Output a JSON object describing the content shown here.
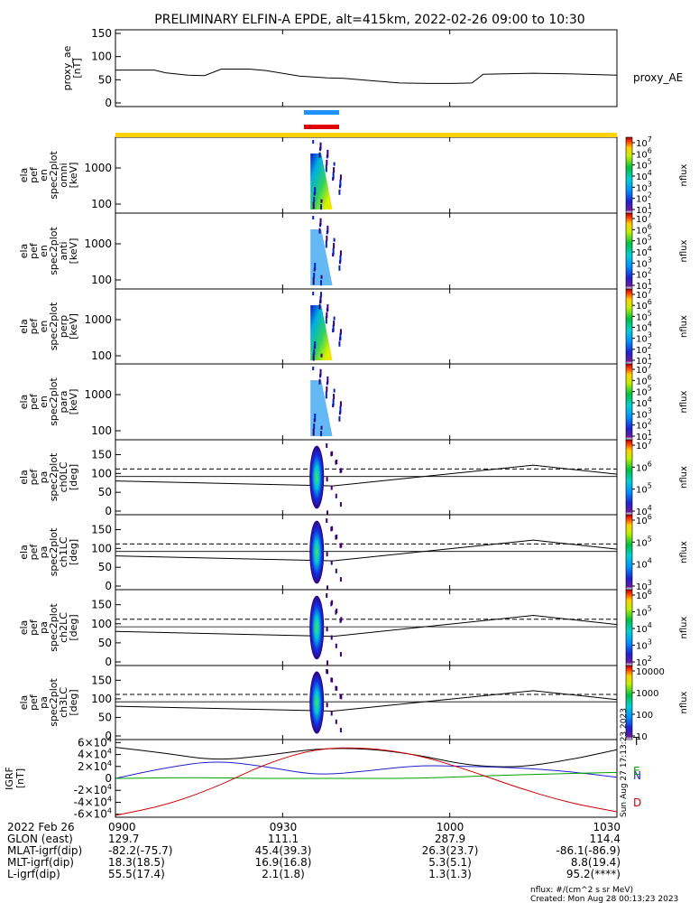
{
  "title": "PRELIMINARY ELFIN-A EPDE, alt=415km, 2022-02-26 09:00 to 10:30",
  "colors": {
    "bar_blue": "#1e90ff",
    "bar_red": "#e00000",
    "bar_yellow": "#ffd200",
    "igrf_black": "#000000",
    "igrf_blue": "#1f1fd0",
    "igrf_green": "#00a000",
    "igrf_red": "#d00000"
  },
  "chart_data": [
    {
      "type": "line",
      "name": "proxy_ae",
      "ylabel_lines": [
        "proxy_ae",
        "[nT]"
      ],
      "legend": "proxy_AE",
      "ylim": [
        0,
        150
      ],
      "yticks": [
        "150",
        "100",
        "50",
        "0"
      ],
      "x": [
        "09:00",
        "09:07",
        "09:09",
        "09:13",
        "09:16",
        "09:19",
        "09:24",
        "09:27",
        "09:33",
        "09:38",
        "09:41",
        "09:46",
        "09:51",
        "09:56",
        "10:00",
        "10:04",
        "10:06",
        "10:15",
        "10:21",
        "10:30"
      ],
      "values": [
        71,
        71,
        65,
        60,
        59,
        73,
        73,
        70,
        58,
        54,
        53,
        48,
        43,
        42,
        42,
        43,
        62,
        64,
        63,
        60
      ]
    },
    {
      "type": "heatmap",
      "name": "spec2plot_omni",
      "ylabel_lines": [
        "ela",
        "pef",
        "en",
        "spec2plot",
        "omni",
        "[keV]"
      ],
      "y_scale": "log",
      "yticks": [
        "1000",
        "100"
      ],
      "colorbar": {
        "label": "nflux",
        "ticks": [
          "10^7",
          "10^6",
          "10^5",
          "10^4",
          "10^3",
          "10^2",
          "10^1"
        ]
      }
    },
    {
      "type": "heatmap",
      "name": "spec2plot_anti",
      "ylabel_lines": [
        "ela",
        "pef",
        "en",
        "spec2plot",
        "anti",
        "[keV]"
      ],
      "y_scale": "log",
      "yticks": [
        "1000",
        "100"
      ],
      "colorbar": {
        "label": "nflux",
        "ticks": [
          "10^7",
          "10^6",
          "10^5",
          "10^4",
          "10^3",
          "10^2",
          "10^1"
        ]
      }
    },
    {
      "type": "heatmap",
      "name": "spec2plot_perp",
      "ylabel_lines": [
        "ela",
        "pef",
        "en",
        "spec2plot",
        "perp",
        "[keV]"
      ],
      "y_scale": "log",
      "yticks": [
        "1000",
        "100"
      ],
      "colorbar": {
        "label": "nflux",
        "ticks": [
          "10^7",
          "10^6",
          "10^5",
          "10^4",
          "10^3",
          "10^2",
          "10^1"
        ]
      }
    },
    {
      "type": "heatmap",
      "name": "spec2plot_para",
      "ylabel_lines": [
        "ela",
        "pef",
        "en",
        "spec2plot",
        "para",
        "[keV]"
      ],
      "y_scale": "log",
      "yticks": [
        "1000",
        "100"
      ],
      "colorbar": {
        "label": "nflux",
        "ticks": [
          "10^7",
          "10^6",
          "10^5",
          "10^4",
          "10^3",
          "10^2",
          "10^1"
        ]
      }
    },
    {
      "type": "heatmap",
      "name": "spec2plot_ch0LC",
      "ylabel_lines": [
        "ela",
        "pef",
        "pa",
        "spec2plot",
        "ch0LC",
        "[deg]"
      ],
      "ylim": [
        0,
        180
      ],
      "yticks": [
        "150",
        "100",
        "50",
        "0"
      ],
      "colorbar": {
        "label": "nflux",
        "ticks": [
          "10^7",
          "10^6",
          "10^5",
          "10^4"
        ]
      }
    },
    {
      "type": "heatmap",
      "name": "spec2plot_ch1LC",
      "ylabel_lines": [
        "ela",
        "pef",
        "pa",
        "spec2plot",
        "ch1LC",
        "[deg]"
      ],
      "ylim": [
        0,
        180
      ],
      "yticks": [
        "150",
        "100",
        "50",
        "0"
      ],
      "colorbar": {
        "label": "nflux",
        "ticks": [
          "10^6",
          "10^5",
          "10^4",
          "10^3"
        ]
      }
    },
    {
      "type": "heatmap",
      "name": "spec2plot_ch2LC",
      "ylabel_lines": [
        "ela",
        "pef",
        "pa",
        "spec2plot",
        "ch2LC",
        "[deg]"
      ],
      "ylim": [
        0,
        180
      ],
      "yticks": [
        "150",
        "100",
        "50",
        "0"
      ],
      "colorbar": {
        "label": "nflux",
        "ticks": [
          "10^6",
          "10^5",
          "10^4",
          "10^3",
          "10^2"
        ]
      }
    },
    {
      "type": "heatmap",
      "name": "spec2plot_ch3LC",
      "ylabel_lines": [
        "ela",
        "pef",
        "pa",
        "spec2plot",
        "ch3LC",
        "[deg]"
      ],
      "ylim": [
        0,
        180
      ],
      "yticks": [
        "150",
        "100",
        "50",
        "0"
      ],
      "colorbar": {
        "label": "nflux",
        "ticks": [
          "10000",
          "1000",
          "100",
          "10"
        ]
      }
    },
    {
      "type": "line",
      "name": "IGRF",
      "ylabel_lines": [
        "IGRF",
        "[nT]"
      ],
      "ylim": [
        -65000,
        65000
      ],
      "yticks": [
        "6×10^4",
        "4×10^4",
        "2×10^4",
        "0",
        "-2×10^4",
        "-4×10^4",
        "-6×10^4"
      ],
      "x": [
        "09:00",
        "09:09",
        "09:18",
        "09:27",
        "09:36",
        "09:45",
        "09:54",
        "10:03",
        "10:12",
        "10:21",
        "10:30"
      ],
      "series": [
        {
          "name": "T",
          "values": [
            52000,
            42000,
            30000,
            38000,
            50000,
            50000,
            40000,
            22000,
            18000,
            30000,
            48000
          ]
        },
        {
          "name": "N",
          "values": [
            0,
            18000,
            30000,
            20000,
            5000,
            12000,
            22000,
            20000,
            18000,
            12000,
            2000
          ]
        },
        {
          "name": "E",
          "values": [
            0,
            1000,
            1000,
            0,
            0,
            0,
            0,
            3000,
            6000,
            8000,
            10000
          ]
        },
        {
          "name": "D",
          "values": [
            -62000,
            -45000,
            -15000,
            25000,
            50000,
            52000,
            40000,
            15000,
            -15000,
            -40000,
            -56000
          ]
        }
      ]
    }
  ],
  "x_axis": {
    "ticks": [
      "0900",
      "0930",
      "1000",
      "1030"
    ],
    "rows": [
      {
        "label": "2022 Feb 26",
        "values": [
          "0900",
          "0930",
          "1000",
          "1030"
        ]
      },
      {
        "label": "GLON (east)",
        "values": [
          "129.7",
          "111.1",
          "287.9",
          "114.4"
        ]
      },
      {
        "label": "MLAT-igrf(dip)",
        "values": [
          "-82.2(-75.7)",
          "45.4(39.3)",
          "26.3(23.7)",
          "-86.1(-86.9)"
        ]
      },
      {
        "label": "MLT-igrf(dip)",
        "values": [
          "18.3(18.5)",
          "16.9(16.8)",
          "5.3(5.1)",
          "8.8(19.4)"
        ]
      },
      {
        "label": "L-igrf(dip)",
        "values": [
          "55.5(17.4)",
          "2.1(1.8)",
          "1.3(1.3)",
          "95.2(****)"
        ]
      }
    ]
  },
  "footer": {
    "units": "nflux: #/(cm^2 s sr MeV)",
    "created": "Created: Mon Aug 28 00:13:23 2023",
    "side_stamp": "Sun Aug 27 17:13:23 2023"
  }
}
